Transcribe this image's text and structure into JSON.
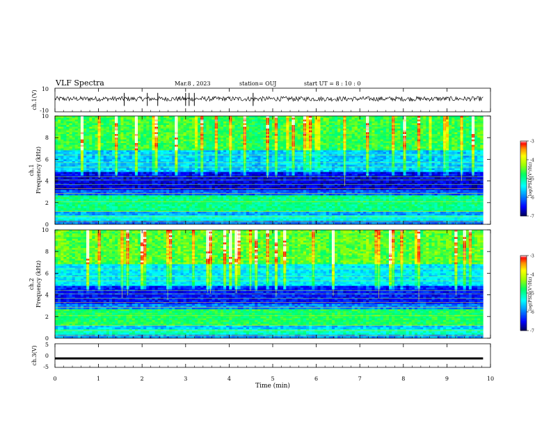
{
  "header": {
    "title": "VLF Spectra",
    "date": "Mar.8 , 2023",
    "station": "station= OUJ",
    "start": "start UT = 8 : 10 : 0"
  },
  "chart_data": [
    {
      "type": "line",
      "name": "ch1-waveform",
      "ylabel": "ch.1(V)",
      "ylim": [
        -10,
        10
      ],
      "yticks": [
        "10",
        "-10"
      ],
      "x_range_min": [
        0,
        9.83
      ],
      "baseline_V": 1.0,
      "amplitude_V": 2.0,
      "spike_times_min": [
        1.59,
        2.12,
        2.36,
        3.0,
        3.08,
        3.2,
        4.55
      ]
    },
    {
      "type": "heatmap",
      "name": "ch1-spectrogram",
      "ylabel_line1": "ch.1",
      "ylabel_line2": "Frequency (kHz)",
      "ylim": [
        0,
        10
      ],
      "yticks": [
        "0",
        "2",
        "4",
        "6",
        "8",
        "10"
      ],
      "colorbar": {
        "label": "log(PSD)(V²/Hz)",
        "ticks": [
          "-3",
          "-4",
          "-5",
          "-6",
          "-7"
        ],
        "range": [
          -7,
          -3
        ]
      }
    },
    {
      "type": "heatmap",
      "name": "ch2-spectrogram",
      "ylabel_line1": "ch.2",
      "ylabel_line2": "Frequency (kHz)",
      "ylim": [
        0,
        10
      ],
      "yticks": [
        "0",
        "2",
        "4",
        "6",
        "8",
        "10"
      ],
      "colorbar": {
        "label": "log(PSD)(V²/Hz)",
        "ticks": [
          "-3",
          "-4",
          "-5",
          "-6",
          "-7"
        ],
        "range": [
          -7,
          -3
        ]
      }
    },
    {
      "type": "line",
      "name": "ch3-waveform",
      "ylabel": "ch.3(V)",
      "ylim": [
        -5,
        5
      ],
      "yticks": [
        "5",
        "0",
        "-5"
      ],
      "x_range_min": [
        0,
        9.83
      ],
      "baseline_V": -1.2
    }
  ],
  "xaxis": {
    "label": "Time (min)",
    "xlim": [
      0,
      10
    ],
    "ticks": [
      "0",
      "1",
      "2",
      "3",
      "4",
      "5",
      "6",
      "7",
      "8",
      "9",
      "10"
    ]
  },
  "colors": {
    "colormap": [
      "#000060",
      "#0000ff",
      "#00a0ff",
      "#00ffff",
      "#00ff60",
      "#a0ff00",
      "#ffff00",
      "#ff8000",
      "#ff0000",
      "#ffffff"
    ]
  }
}
